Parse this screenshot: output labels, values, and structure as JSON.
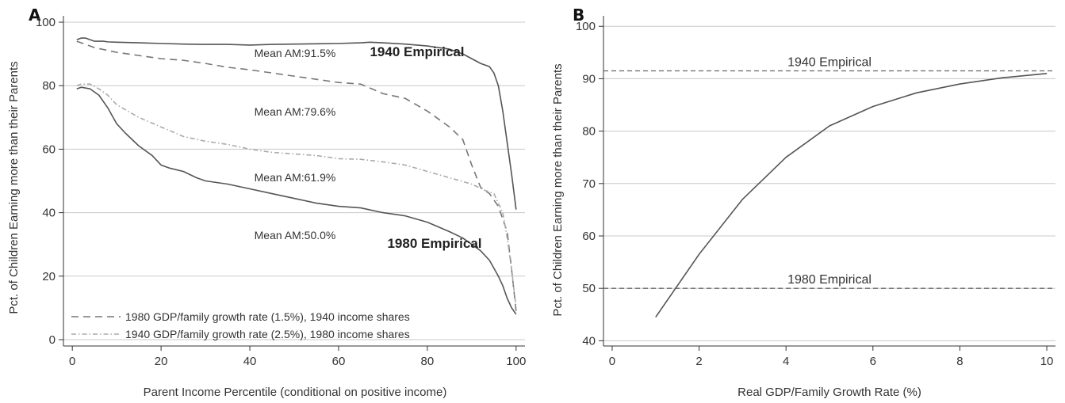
{
  "chart_data": [
    {
      "type": "line",
      "panel_label": "A",
      "xlabel": "Parent Income Percentile (conditional on positive income)",
      "ylabel": "Pct. of Children Earning more than their Parents",
      "xlim": [
        -2,
        102
      ],
      "ylim": [
        -2,
        102
      ],
      "x_ticks": [
        "0",
        "20",
        "40",
        "60",
        "80",
        "100"
      ],
      "y_ticks": [
        "0",
        "20",
        "40",
        "60",
        "80",
        "100"
      ],
      "grid": "horizontal",
      "legend_position": "bottom-left",
      "legend": [
        "1980 GDP/family growth rate (1.5%), 1940 income shares",
        "1940 GDP/family growth rate (2.5%), 1980 income shares"
      ],
      "series": [
        {
          "label": "1940 Empirical",
          "style": "solid",
          "color": "#555555",
          "points": [
            [
              1,
              94.5
            ],
            [
              2,
              95
            ],
            [
              3,
              95
            ],
            [
              4,
              94.5
            ],
            [
              5,
              94
            ],
            [
              6,
              94
            ],
            [
              7,
              94
            ],
            [
              8,
              93.8
            ],
            [
              10,
              93.7
            ],
            [
              15,
              93.5
            ],
            [
              20,
              93.3
            ],
            [
              25,
              93.1
            ],
            [
              30,
              93
            ],
            [
              35,
              93
            ],
            [
              40,
              92.8
            ],
            [
              45,
              93
            ],
            [
              50,
              93.1
            ],
            [
              55,
              93.2
            ],
            [
              60,
              93.3
            ],
            [
              65,
              93.5
            ],
            [
              67,
              93.7
            ],
            [
              70,
              93.5
            ],
            [
              75,
              93.1
            ],
            [
              80,
              92.5
            ],
            [
              85,
              91.5
            ],
            [
              88,
              90
            ],
            [
              90,
              88.5
            ],
            [
              92,
              87
            ],
            [
              94,
              86
            ],
            [
              95,
              84
            ],
            [
              96,
              80
            ],
            [
              97,
              72
            ],
            [
              98,
              62
            ],
            [
              99,
              52
            ],
            [
              100,
              41
            ]
          ]
        },
        {
          "label": "1980 GDP/family growth rate (1.5%), 1940 income shares",
          "style": "dashed",
          "color": "#777777",
          "points": [
            [
              1,
              94
            ],
            [
              3,
              93
            ],
            [
              5,
              92
            ],
            [
              10,
              90.5
            ],
            [
              15,
              89.5
            ],
            [
              20,
              88.5
            ],
            [
              25,
              88
            ],
            [
              30,
              87
            ],
            [
              35,
              85.8
            ],
            [
              40,
              85
            ],
            [
              45,
              84
            ],
            [
              50,
              83
            ],
            [
              55,
              82
            ],
            [
              60,
              81
            ],
            [
              65,
              80.5
            ],
            [
              70,
              77.5
            ],
            [
              75,
              76
            ],
            [
              80,
              72
            ],
            [
              85,
              67
            ],
            [
              88,
              63
            ],
            [
              90,
              55
            ],
            [
              92,
              48
            ],
            [
              94,
              46
            ],
            [
              96,
              42
            ],
            [
              98,
              34
            ],
            [
              99,
              22
            ],
            [
              100,
              9
            ]
          ]
        },
        {
          "label": "1940 GDP/family growth rate (2.5%), 1980 income shares",
          "style": "dash-dot",
          "color": "#aaaaaa",
          "points": [
            [
              1,
              80
            ],
            [
              2,
              80.5
            ],
            [
              4,
              80.5
            ],
            [
              6,
              79
            ],
            [
              8,
              77
            ],
            [
              10,
              74
            ],
            [
              15,
              70
            ],
            [
              20,
              67
            ],
            [
              25,
              64
            ],
            [
              30,
              62.5
            ],
            [
              35,
              61.5
            ],
            [
              40,
              60
            ],
            [
              45,
              59
            ],
            [
              50,
              58.5
            ],
            [
              55,
              58
            ],
            [
              60,
              57
            ],
            [
              65,
              56.8
            ],
            [
              70,
              56
            ],
            [
              75,
              55
            ],
            [
              80,
              53
            ],
            [
              85,
              51
            ],
            [
              90,
              49
            ],
            [
              93,
              47
            ],
            [
              95,
              46
            ],
            [
              97,
              40
            ],
            [
              98,
              32
            ],
            [
              99,
              22
            ],
            [
              100,
              10
            ]
          ]
        },
        {
          "label": "1980 Empirical",
          "style": "solid",
          "color": "#555555",
          "points": [
            [
              1,
              79
            ],
            [
              2,
              79.5
            ],
            [
              4,
              79
            ],
            [
              6,
              77
            ],
            [
              8,
              73
            ],
            [
              10,
              68
            ],
            [
              12,
              65
            ],
            [
              15,
              61
            ],
            [
              18,
              58
            ],
            [
              20,
              55
            ],
            [
              22,
              54
            ],
            [
              25,
              53
            ],
            [
              28,
              51
            ],
            [
              30,
              50
            ],
            [
              35,
              49
            ],
            [
              40,
              47.5
            ],
            [
              45,
              46
            ],
            [
              50,
              44.5
            ],
            [
              55,
              43
            ],
            [
              60,
              42
            ],
            [
              65,
              41.5
            ],
            [
              70,
              40
            ],
            [
              75,
              39
            ],
            [
              80,
              37
            ],
            [
              85,
              34
            ],
            [
              88,
              32
            ],
            [
              90,
              30
            ],
            [
              92,
              28
            ],
            [
              94,
              25
            ],
            [
              96,
              20
            ],
            [
              97,
              17
            ],
            [
              98,
              13
            ],
            [
              99,
              10
            ],
            [
              100,
              8
            ]
          ]
        }
      ],
      "annotations": {
        "mean_1940": "Mean AM:91.5%",
        "label_1940": "1940 Empirical",
        "mean_alt1": "Mean AM:79.6%",
        "mean_alt2": "Mean AM:61.9%",
        "mean_1980": "Mean AM:50.0%",
        "label_1980": "1980 Empirical"
      }
    },
    {
      "type": "line",
      "panel_label": "B",
      "xlabel": "Real GDP/Family Growth Rate (%)",
      "ylabel": "Pct. of Children Earning more than their Parents",
      "xlim": [
        -0.2,
        10.2
      ],
      "ylim": [
        39,
        102
      ],
      "x_ticks": [
        "0",
        "2",
        "4",
        "6",
        "8",
        "10"
      ],
      "y_ticks": [
        "40",
        "50",
        "60",
        "70",
        "80",
        "90",
        "100"
      ],
      "grid": "horizontal",
      "series": [
        {
          "style": "solid",
          "color": "#555555",
          "points": [
            [
              1,
              44.5
            ],
            [
              2,
              56.5
            ],
            [
              3,
              67
            ],
            [
              4,
              75
            ],
            [
              5,
              81
            ],
            [
              6,
              84.7
            ],
            [
              7,
              87.3
            ],
            [
              8,
              89
            ],
            [
              9,
              90.2
            ],
            [
              10,
              91
            ]
          ]
        }
      ],
      "reference_lines": [
        {
          "label": "1940 Empirical",
          "y": 91.5
        },
        {
          "label": "1980 Empirical",
          "y": 50
        }
      ]
    }
  ]
}
